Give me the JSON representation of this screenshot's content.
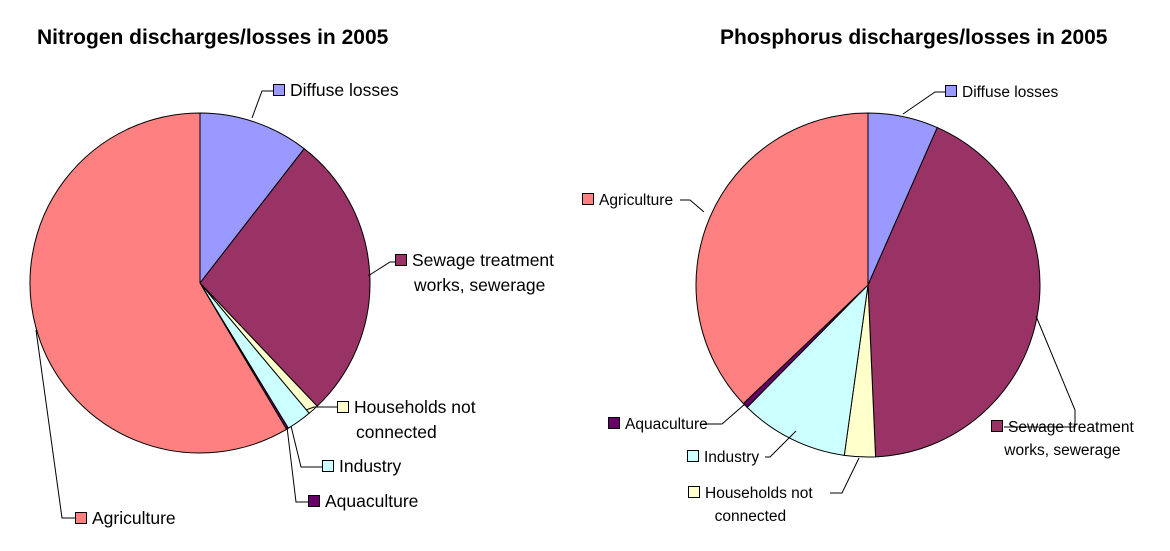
{
  "chart_data": [
    {
      "type": "pie",
      "title": "Nitrogen discharges/losses in 2005",
      "categories": [
        "Diffuse losses",
        "Sewage treatment works, sewerage",
        "Households not connected",
        "Industry",
        "Aquaculture",
        "Agriculture"
      ],
      "values": [
        10.5,
        27.4,
        1.0,
        2.4,
        0.2,
        58.5
      ],
      "unit": "percent (estimated)",
      "colors": [
        "#9999FF",
        "#993366",
        "#FFFFCC",
        "#CCFFFF",
        "#660066",
        "#FF8080"
      ],
      "legend": "leader-line labels"
    },
    {
      "type": "pie",
      "title": "Phosphorus discharges/losses in 2005",
      "categories": [
        "Diffuse losses",
        "Sewage treatment works, sewerage",
        "Households not connected",
        "Industry",
        "Aquaculture",
        "Agriculture"
      ],
      "values": [
        6.6,
        42.7,
        2.9,
        10.2,
        0.5,
        37.1
      ],
      "unit": "percent (estimated)",
      "colors": [
        "#9999FF",
        "#993366",
        "#FFFFCC",
        "#CCFFFF",
        "#660066",
        "#FF8080"
      ],
      "legend": "leader-line labels"
    }
  ],
  "labels": {
    "sewage_line1": "Sewage treatment",
    "sewage_line2": "works, sewerage",
    "households_line1": "Households not",
    "households_line2": "connected"
  }
}
